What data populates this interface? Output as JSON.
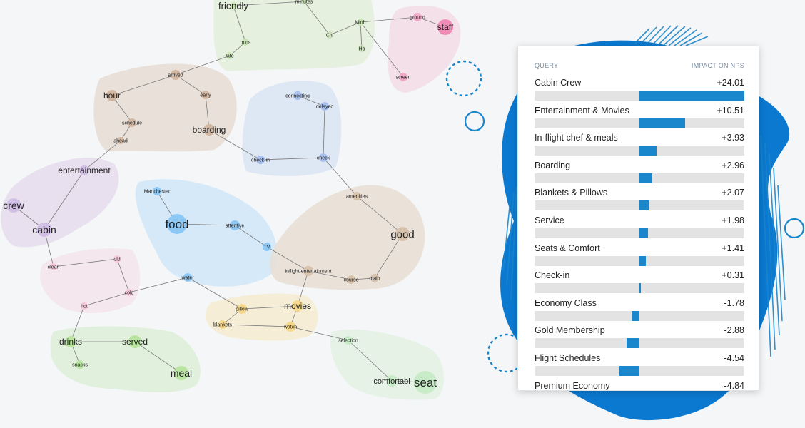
{
  "graph": {
    "clusters": [
      {
        "name": "friendly-cluster",
        "color": "#e3efd9"
      },
      {
        "name": "staff-cluster",
        "color": "#f3dce6"
      },
      {
        "name": "hour-cluster",
        "color": "#e6ddd3"
      },
      {
        "name": "check-cluster",
        "color": "#d9e4f3"
      },
      {
        "name": "crew-cluster",
        "color": "#e5dcec"
      },
      {
        "name": "food-cluster",
        "color": "#cfe6f8"
      },
      {
        "name": "good-cluster",
        "color": "#e7ded3"
      },
      {
        "name": "clean-cluster",
        "color": "#f5e4ec"
      },
      {
        "name": "drinks-cluster",
        "color": "#dcefd7"
      },
      {
        "name": "movies-cluster",
        "color": "#f5ebcf"
      },
      {
        "name": "seat-cluster",
        "color": "#e2f1e2"
      }
    ],
    "nodes": [
      {
        "id": "friendly",
        "label": "friendly",
        "color": "#c9e3b5"
      },
      {
        "id": "minutes",
        "label": "minutes",
        "color": "#c9e3b5"
      },
      {
        "id": "mins",
        "label": "mins",
        "color": "#c9e3b5"
      },
      {
        "id": "late",
        "label": "late",
        "color": "#c9e3b5"
      },
      {
        "id": "chi",
        "label": "Chi",
        "color": "#c9e3b5"
      },
      {
        "id": "minh",
        "label": "Minh",
        "color": "#c9e3b5"
      },
      {
        "id": "ho",
        "label": "Ho",
        "color": "#c9e3b5"
      },
      {
        "id": "ground",
        "label": "ground",
        "color": "#f0a9c7"
      },
      {
        "id": "staff",
        "label": "staff",
        "color": "#f08bb6"
      },
      {
        "id": "screen",
        "label": "screen",
        "color": "#f0a9c7"
      },
      {
        "id": "arrived",
        "label": "arrived",
        "color": "#d2b8a2"
      },
      {
        "id": "hour",
        "label": "hour",
        "color": "#d2b8a2"
      },
      {
        "id": "early",
        "label": "early",
        "color": "#d2b8a2"
      },
      {
        "id": "schedule",
        "label": "schedule",
        "color": "#d2b8a2"
      },
      {
        "id": "ahead",
        "label": "ahead",
        "color": "#d2b8a2"
      },
      {
        "id": "boarding",
        "label": "boarding",
        "color": "#d2b8a2"
      },
      {
        "id": "connecting",
        "label": "connecting",
        "color": "#a8c0ee"
      },
      {
        "id": "delayed",
        "label": "delayed",
        "color": "#a8c0ee"
      },
      {
        "id": "checkin",
        "label": "check-in",
        "color": "#a8c0ee"
      },
      {
        "id": "check",
        "label": "check",
        "color": "#a8c0ee"
      },
      {
        "id": "entertainment",
        "label": "entertainment",
        "color": "#d2bfe6"
      },
      {
        "id": "crew",
        "label": "crew",
        "color": "#d2bfe6"
      },
      {
        "id": "cabin",
        "label": "cabin",
        "color": "#d2bfe6"
      },
      {
        "id": "manchester",
        "label": "Manchester",
        "color": "#8dc8f5"
      },
      {
        "id": "food",
        "label": "food",
        "color": "#8dc8f5"
      },
      {
        "id": "attentive",
        "label": "attentive",
        "color": "#8dc8f5"
      },
      {
        "id": "tv",
        "label": "TV",
        "color": "#8dc8f5"
      },
      {
        "id": "water",
        "label": "water",
        "color": "#8dc8f5"
      },
      {
        "id": "amenities",
        "label": "amenities",
        "color": "#d7c3ad"
      },
      {
        "id": "good",
        "label": "good",
        "color": "#d7c3ad"
      },
      {
        "id": "inflight",
        "label": "inflight entertainment",
        "color": "#d7c3ad"
      },
      {
        "id": "course",
        "label": "course",
        "color": "#d7c3ad"
      },
      {
        "id": "main",
        "label": "main",
        "color": "#d7c3ad"
      },
      {
        "id": "old",
        "label": "old",
        "color": "#f6c7d9"
      },
      {
        "id": "clean",
        "label": "clean",
        "color": "#f6c7d9"
      },
      {
        "id": "cold",
        "label": "cold",
        "color": "#f6c7d9"
      },
      {
        "id": "hot",
        "label": "hot",
        "color": "#f6c7d9"
      },
      {
        "id": "pillow",
        "label": "pillow",
        "color": "#f5d88c"
      },
      {
        "id": "movies",
        "label": "movies",
        "color": "#f5d88c"
      },
      {
        "id": "blankets",
        "label": "blankets",
        "color": "#f5d88c"
      },
      {
        "id": "watch",
        "label": "watch",
        "color": "#f5d88c"
      },
      {
        "id": "drinks",
        "label": "drinks",
        "color": "#b9e5a0"
      },
      {
        "id": "served",
        "label": "served",
        "color": "#b9e5a0"
      },
      {
        "id": "snacks",
        "label": "snacks",
        "color": "#b9e5a0"
      },
      {
        "id": "meal",
        "label": "meal",
        "color": "#b9e5a0"
      },
      {
        "id": "selection",
        "label": "selection",
        "color": "#c8ebc8"
      },
      {
        "id": "comfortable",
        "label": "comfortabl",
        "color": "#c8ebc8"
      },
      {
        "id": "seat",
        "label": "seat",
        "color": "#c8ebc8"
      }
    ]
  },
  "panel": {
    "header_query": "QUERY",
    "header_impact": "IMPACT ON NPS",
    "range": [
      -24.01,
      24.01
    ],
    "rows": [
      {
        "label": "Cabin Crew",
        "value": "+24.01",
        "num": 24.01
      },
      {
        "label": "Entertainment & Movies",
        "value": "+10.51",
        "num": 10.51
      },
      {
        "label": "In-flight chef & meals",
        "value": "+3.93",
        "num": 3.93
      },
      {
        "label": "Boarding",
        "value": "+2.96",
        "num": 2.96
      },
      {
        "label": "Blankets & Pillows",
        "value": "+2.07",
        "num": 2.07
      },
      {
        "label": "Service",
        "value": "+1.98",
        "num": 1.98
      },
      {
        "label": "Seats & Comfort",
        "value": "+1.41",
        "num": 1.41
      },
      {
        "label": "Check-in",
        "value": "+0.31",
        "num": 0.31
      },
      {
        "label": "Economy Class",
        "value": "-1.78",
        "num": -1.78
      },
      {
        "label": "Gold Membership",
        "value": "-2.88",
        "num": -2.88
      },
      {
        "label": "Flight Schedules",
        "value": "-4.54",
        "num": -4.54
      },
      {
        "label": "Premium Economy",
        "value": "-4.84",
        "num": -4.84
      }
    ]
  },
  "colors": {
    "accent": "#1a86cc",
    "decor": "#0a78d2"
  }
}
